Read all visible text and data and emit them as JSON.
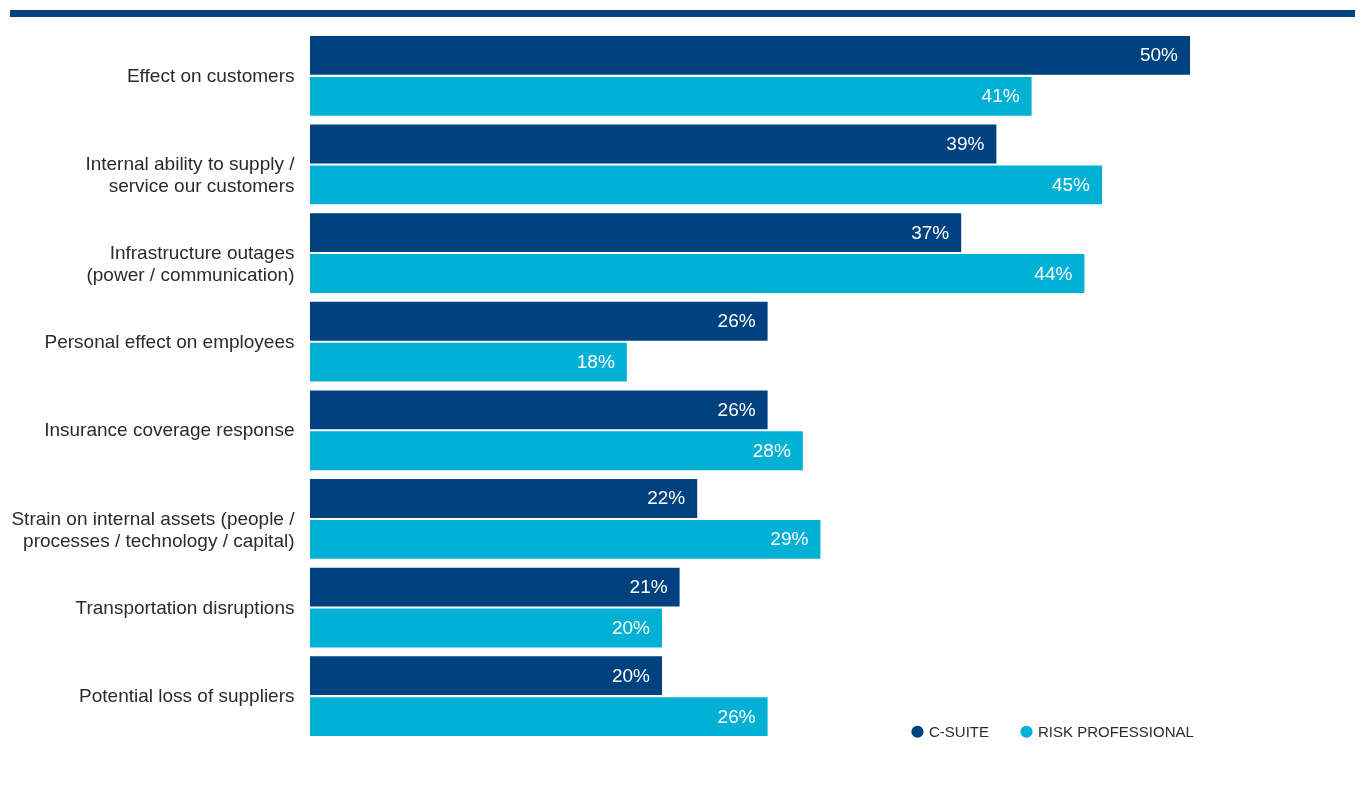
{
  "chart_data": {
    "type": "bar",
    "orientation": "horizontal",
    "legend": "bottom right",
    "categories": [
      "Effect on customers",
      "Internal ability to supply /\nservice our customers",
      "Infrastructure outages\n(power / communication)",
      "Personal effect on employees",
      "Insurance coverage response",
      "Strain on internal assets (people /\nprocesses / technology / capital)",
      "Transportation disruptions",
      "Potential loss of suppliers"
    ],
    "series": [
      {
        "name": "C-SUITE",
        "color": "#00417f",
        "values": [
          50,
          39,
          37,
          26,
          26,
          22,
          21,
          20
        ],
        "value_labels": [
          "50%",
          "39%",
          "37%",
          "26%",
          "26%",
          "22%",
          "21%",
          "20%"
        ]
      },
      {
        "name": "RISK PROFESSIONAL",
        "color": "#00b0d5",
        "values": [
          41,
          45,
          44,
          18,
          28,
          29,
          20,
          26
        ],
        "value_labels": [
          "41%",
          "45%",
          "44%",
          "18%",
          "28%",
          "29%",
          "20%",
          "26%"
        ]
      }
    ]
  }
}
